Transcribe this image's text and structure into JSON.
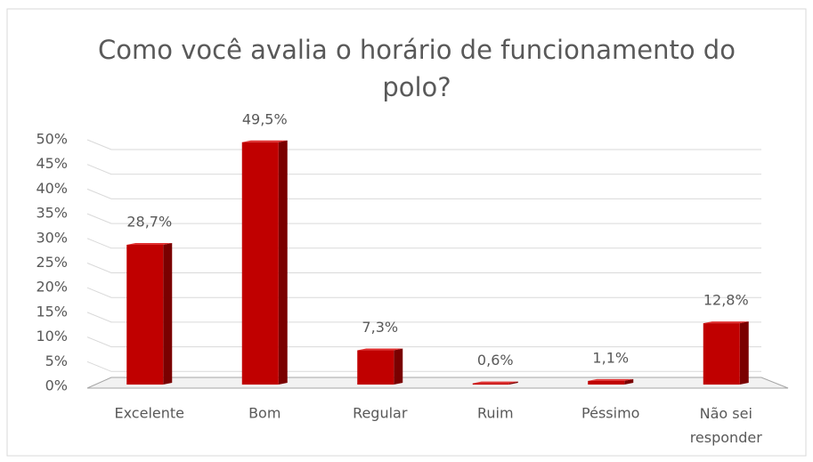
{
  "chart_data": {
    "type": "bar3d",
    "title": "Como você avalia o horário de funcionamento do polo?",
    "categories": [
      "Excelente",
      "Bom",
      "Regular",
      "Ruim",
      "Péssimo",
      "Não sei responder"
    ],
    "values": [
      28.7,
      49.5,
      7.3,
      0.6,
      1.1,
      12.8
    ],
    "value_labels": [
      "28,7%",
      "49,5%",
      "7,3%",
      "0,6%",
      "1,1%",
      "12,8%"
    ],
    "color": "#c00000",
    "ylim": [
      0,
      50
    ],
    "yticks": [
      {
        "value": 0,
        "label": "0%"
      },
      {
        "value": 5,
        "label": "5%"
      },
      {
        "value": 10,
        "label": "10%"
      },
      {
        "value": 15,
        "label": "15%"
      },
      {
        "value": 20,
        "label": "20%"
      },
      {
        "value": 25,
        "label": "25%"
      },
      {
        "value": 30,
        "label": "30%"
      },
      {
        "value": 35,
        "label": "35%"
      },
      {
        "value": 40,
        "label": "40%"
      },
      {
        "value": 45,
        "label": "45%"
      },
      {
        "value": 50,
        "label": "50%"
      }
    ],
    "grid": true
  }
}
